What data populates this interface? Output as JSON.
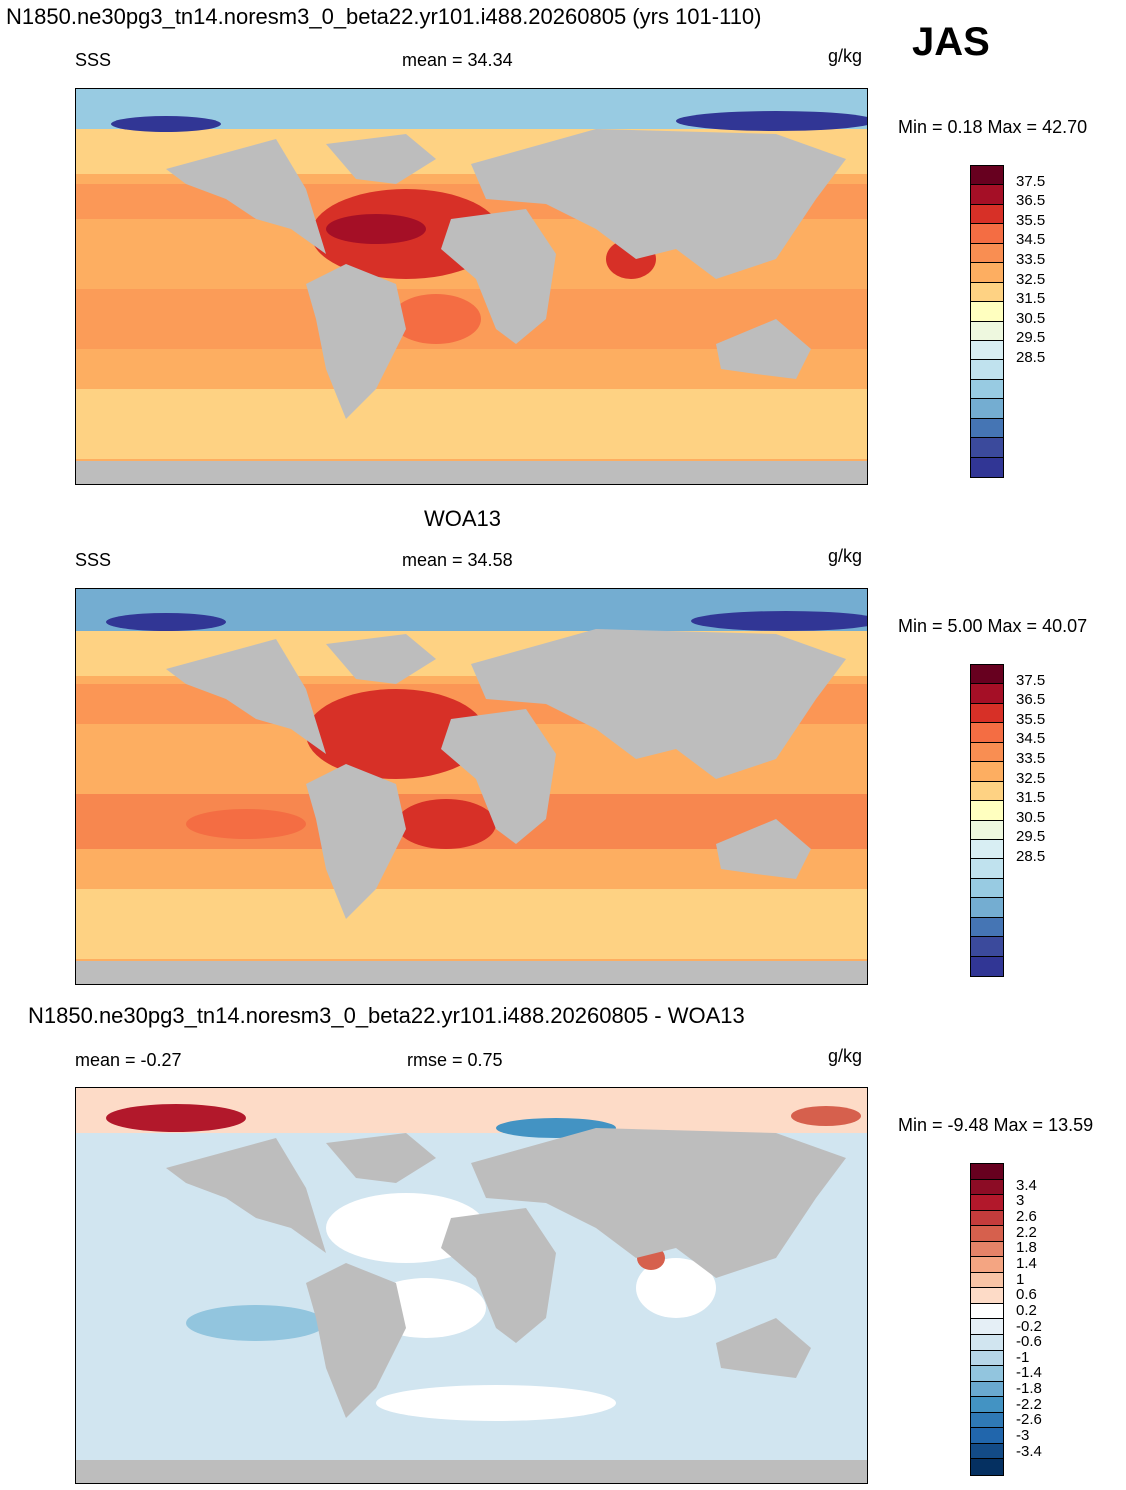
{
  "title": "N1850.ne30pg3_tn14.noresm3_0_beta22.yr101.i488.20260805 (yrs 101-110)",
  "season": "JAS",
  "panels": [
    {
      "title": "",
      "left_label": "SSS",
      "center_label": "mean =  34.34",
      "units": "g/kg",
      "minmax": "Min =   0.18 Max =  42.70",
      "colorbar": {
        "labels": [
          "37.5",
          "36.5",
          "35.5",
          "34.5",
          "33.5",
          "32.5",
          "31.5",
          "30.5",
          "29.5",
          "28.5"
        ],
        "colors": [
          "#67001f",
          "#a50f26",
          "#d73027",
          "#f46d43",
          "#f98e52",
          "#fdae61",
          "#fed283",
          "#ffffbf",
          "#eef8df",
          "#d8eef3",
          "#c0e2ee",
          "#98cbe2",
          "#74add1",
          "#4575b4",
          "#3b4a9c",
          "#313695"
        ]
      }
    },
    {
      "title": "WOA13",
      "left_label": "SSS",
      "center_label": "mean =  34.58",
      "units": "g/kg",
      "minmax": "Min =   5.00 Max =  40.07",
      "colorbar": {
        "labels": [
          "37.5",
          "36.5",
          "35.5",
          "34.5",
          "33.5",
          "32.5",
          "31.5",
          "30.5",
          "29.5",
          "28.5"
        ],
        "colors": [
          "#67001f",
          "#a50f26",
          "#d73027",
          "#f46d43",
          "#f98e52",
          "#fdae61",
          "#fed283",
          "#ffffbf",
          "#eef8df",
          "#d8eef3",
          "#c0e2ee",
          "#98cbe2",
          "#74add1",
          "#4575b4",
          "#3b4a9c",
          "#313695"
        ]
      }
    },
    {
      "title": "N1850.ne30pg3_tn14.noresm3_0_beta22.yr101.i488.20260805 - WOA13",
      "left_label": "mean =  -0.27",
      "center_label": "rmse =   0.75",
      "units": "g/kg",
      "minmax": "Min =  -9.48 Max =  13.59",
      "colorbar": {
        "labels": [
          "3.4",
          "3",
          "2.6",
          "2.2",
          "1.8",
          "1.4",
          "1",
          "0.6",
          "0.2",
          "-0.2",
          "-0.6",
          "-1",
          "-1.4",
          "-1.8",
          "-2.2",
          "-2.6",
          "-3",
          "-3.4"
        ],
        "colors": [
          "#67001f",
          "#8c0c25",
          "#b2182b",
          "#c43c3c",
          "#d6604d",
          "#e58368",
          "#f4a582",
          "#f8c4a6",
          "#fddbc7",
          "#ffffff",
          "#e5eff6",
          "#d1e5f0",
          "#b6d6e8",
          "#92c5de",
          "#6aa9cf",
          "#4393c3",
          "#2f79b5",
          "#2166ac",
          "#134b87",
          "#053061"
        ]
      }
    }
  ]
}
